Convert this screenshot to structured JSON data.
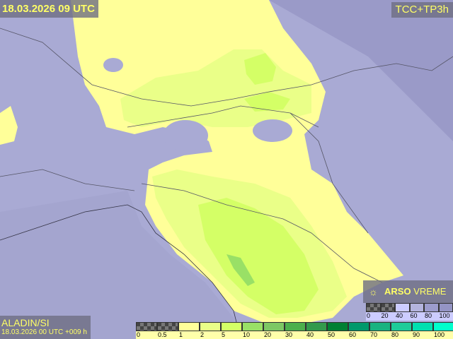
{
  "header": {
    "valid_time": "18.03.2026 09 UTC",
    "product": "TCC+TP3h"
  },
  "model": {
    "name": "ALADIN/SI",
    "run": "18.03.2026 00 UTC +009 h"
  },
  "brand": {
    "icon": "arso-logo-icon",
    "name_bold": "ARSO",
    "name_rest": "VREME"
  },
  "precip_legend": {
    "labels": [
      "0",
      "0.5",
      "1",
      "2",
      "5",
      "10",
      "20",
      "30",
      "40",
      "50",
      "60",
      "70",
      "80",
      "90",
      "100"
    ],
    "colors": [
      "checker",
      "checker",
      "#ffff99",
      "#eaff88",
      "#d4ff66",
      "#99e066",
      "#7dc864",
      "#4cb04c",
      "#339a4c",
      "#008033",
      "#00996b",
      "#1ab380",
      "#1fcc99",
      "#00e0b0",
      "#00ffcc"
    ]
  },
  "cloud_legend": {
    "labels": [
      "0",
      "20",
      "40",
      "60",
      "80",
      "100"
    ],
    "colors": [
      "checker",
      "checker",
      "#ccccff",
      "#b4b4dd",
      "#9c9ccc",
      "#9494c4"
    ]
  }
}
